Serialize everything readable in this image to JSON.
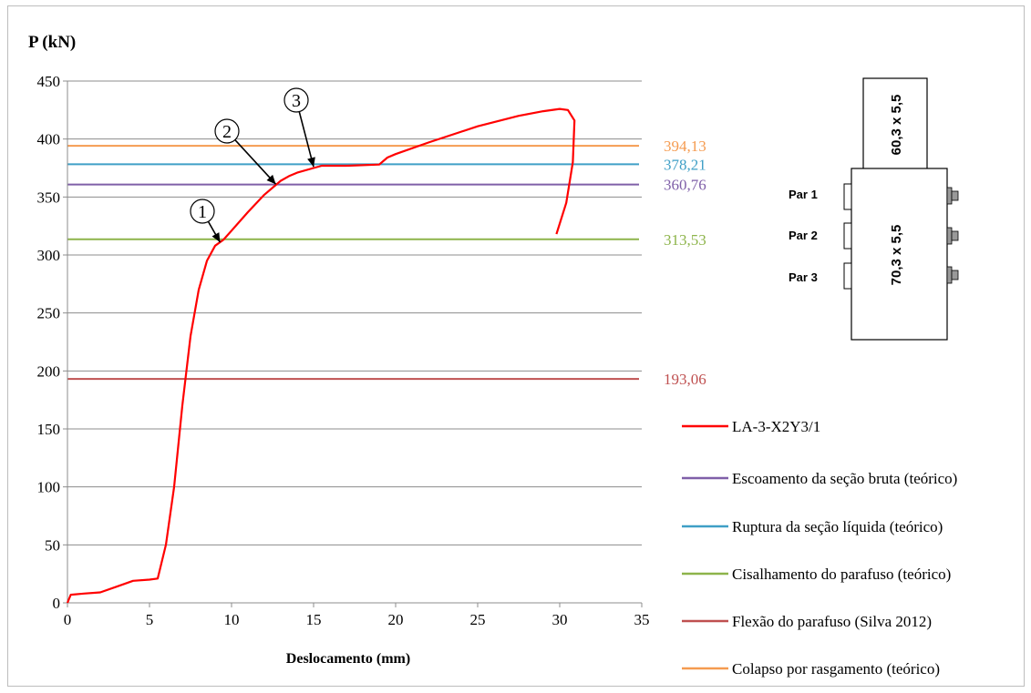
{
  "chart_data": {
    "type": "line",
    "ylabel": "P (kN)",
    "xlabel": "Deslocamento (mm)",
    "xlim": [
      0,
      35
    ],
    "ylim": [
      0,
      450
    ],
    "xticks": [
      "0",
      "5",
      "10",
      "15",
      "20",
      "25",
      "30",
      "35"
    ],
    "yticks": [
      "0",
      "50",
      "100",
      "150",
      "200",
      "250",
      "300",
      "350",
      "400",
      "450"
    ],
    "grid": "horizontal",
    "legend_position": "right",
    "series": [
      {
        "name": "LA-3-X2Y3/1",
        "color": "#ff0000",
        "points": [
          [
            0,
            0
          ],
          [
            0.2,
            7
          ],
          [
            1,
            8
          ],
          [
            2,
            9
          ],
          [
            3,
            14
          ],
          [
            4,
            19
          ],
          [
            5,
            20
          ],
          [
            5.5,
            21
          ],
          [
            6,
            50
          ],
          [
            6.5,
            100
          ],
          [
            7,
            170
          ],
          [
            7.5,
            230
          ],
          [
            8,
            270
          ],
          [
            8.5,
            295
          ],
          [
            9,
            308
          ],
          [
            9.5,
            313
          ],
          [
            10,
            321
          ],
          [
            11,
            337
          ],
          [
            12,
            352
          ],
          [
            13,
            364
          ],
          [
            13.5,
            368
          ],
          [
            14,
            371
          ],
          [
            15,
            375
          ],
          [
            15.5,
            377
          ],
          [
            17,
            377
          ],
          [
            19,
            378
          ],
          [
            19.5,
            384
          ],
          [
            20,
            387
          ],
          [
            22,
            397
          ],
          [
            25,
            411
          ],
          [
            27.5,
            420
          ],
          [
            29,
            424
          ],
          [
            30,
            426
          ],
          [
            30.5,
            425
          ],
          [
            30.9,
            416
          ],
          [
            30.8,
            380
          ],
          [
            30.4,
            345
          ],
          [
            29.8,
            318
          ]
        ]
      },
      {
        "name": "Escoamento da seção bruta (teórico)",
        "color": "#7f5fa8",
        "value": 360.76,
        "label": "360,76"
      },
      {
        "name": "Ruptura da seção líquida (teórico)",
        "color": "#3f9fc6",
        "value": 378.21,
        "label": "378,21"
      },
      {
        "name": "Cisalhamento do parafuso (teórico)",
        "color": "#8db44a",
        "value": 313.53,
        "label": "313,53"
      },
      {
        "name": "Flexão do parafuso (Silva 2012)",
        "color": "#bf5050",
        "value": 193.06,
        "label": "193,06"
      },
      {
        "name": "Colapso por rasgamento (teórico)",
        "color": "#f59b50",
        "value": 394.13,
        "label": "394,13"
      }
    ],
    "annotations": [
      {
        "label": "1",
        "x": 9.3,
        "y": 311
      },
      {
        "label": "2",
        "x": 12.7,
        "y": 361
      },
      {
        "label": "3",
        "x": 15.0,
        "y": 376
      }
    ]
  },
  "diagram": {
    "upper_section": "60,3 x 5,5",
    "lower_section": "70,3 x 5,5",
    "pairs": [
      "Par 1",
      "Par 2",
      "Par 3"
    ]
  }
}
